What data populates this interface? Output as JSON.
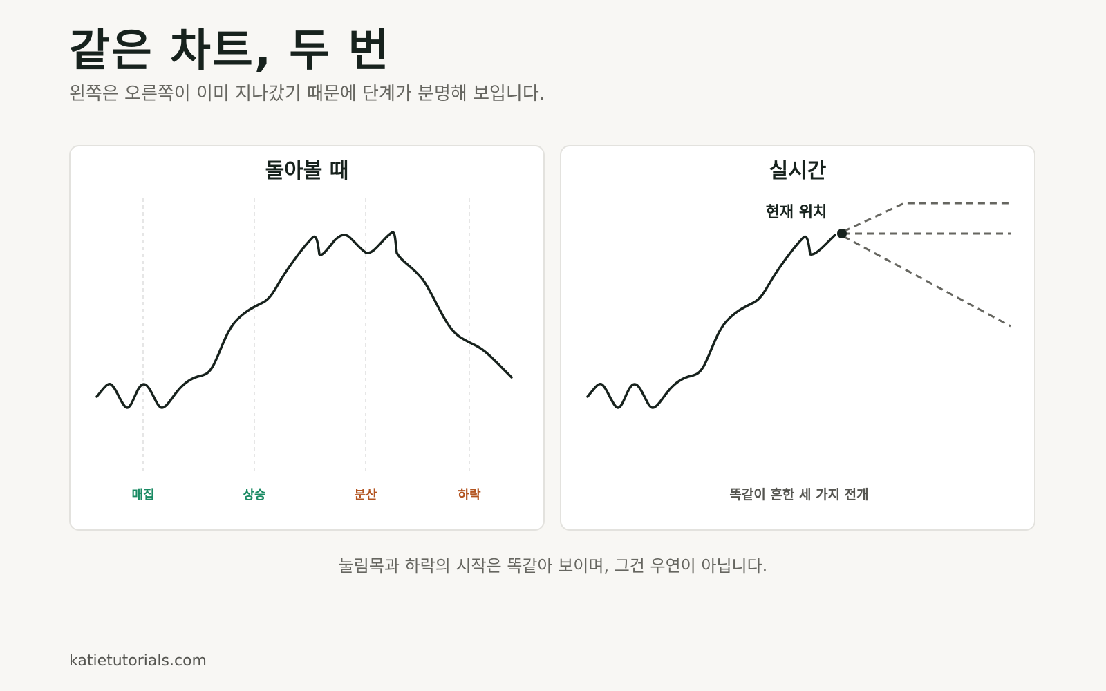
{
  "header": {
    "title": "같은 차트, 두 번",
    "subtitle": "왼쪽은 오른쪽이 이미 지나갔기 때문에 단계가 분명해 보입니다."
  },
  "panels": {
    "left": {
      "title": "돌아볼 때",
      "phases": [
        {
          "label": "매집",
          "color": "#1a8a63"
        },
        {
          "label": "상승",
          "color": "#1a8a63"
        },
        {
          "label": "분산",
          "color": "#b35420"
        },
        {
          "label": "하락",
          "color": "#b35420"
        }
      ]
    },
    "right": {
      "title": "실시간",
      "marker_label": "현재 위치",
      "bottom_label": "똑같이 흔한 세 가지 전개"
    }
  },
  "caption": "눌림목과 하락의 시작은 똑같아 보이며, 그건 우연이 아닙니다.",
  "footer": {
    "site": "katietutorials.com"
  },
  "colors": {
    "line": "#17221d",
    "dashed": "#666660",
    "guide": "#dddddd"
  }
}
